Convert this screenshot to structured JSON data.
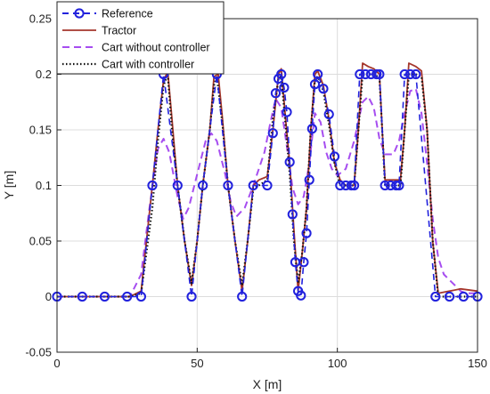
{
  "chart_data": {
    "type": "line",
    "xlabel": "X [m]",
    "ylabel": "Y [m]",
    "xlim": [
      0,
      150
    ],
    "ylim": [
      -0.05,
      0.25
    ],
    "xticks": [
      "0",
      "50",
      "100",
      "150"
    ],
    "yticks": [
      "-0.05",
      "0",
      "0.05",
      "0.1",
      "0.15",
      "0.2",
      "0.25"
    ],
    "grid": true,
    "legend_position": "top-left",
    "series": [
      {
        "name": "Reference",
        "style": "dashed-with-circles",
        "color": "#2222dd",
        "points": [
          [
            0,
            0
          ],
          [
            9,
            0
          ],
          [
            17,
            0
          ],
          [
            25,
            0
          ],
          [
            30,
            0
          ],
          [
            34,
            0.1
          ],
          [
            38,
            0.2
          ],
          [
            43,
            0.1
          ],
          [
            48,
            0
          ],
          [
            52,
            0.1
          ],
          [
            57,
            0.2
          ],
          [
            61,
            0.1
          ],
          [
            66,
            0
          ],
          [
            70,
            0.1
          ],
          [
            75,
            0.1
          ],
          [
            77,
            0.147
          ],
          [
            78,
            0.183
          ],
          [
            79,
            0.196
          ],
          [
            80,
            0.2
          ],
          [
            81,
            0.188
          ],
          [
            82,
            0.166
          ],
          [
            83,
            0.121
          ],
          [
            84,
            0.074
          ],
          [
            85,
            0.031
          ],
          [
            86,
            0.005
          ],
          [
            87,
            0.001
          ],
          [
            88,
            0.031
          ],
          [
            89,
            0.057
          ],
          [
            90,
            0.105
          ],
          [
            91,
            0.151
          ],
          [
            92,
            0.191
          ],
          [
            93,
            0.2
          ],
          [
            95,
            0.187
          ],
          [
            97,
            0.164
          ],
          [
            99,
            0.126
          ],
          [
            101,
            0.1
          ],
          [
            103,
            0.1
          ],
          [
            105,
            0.1
          ],
          [
            106,
            0.1
          ],
          [
            108,
            0.2
          ],
          [
            110,
            0.2
          ],
          [
            112,
            0.2
          ],
          [
            114,
            0.2
          ],
          [
            115,
            0.2
          ],
          [
            117,
            0.1
          ],
          [
            119,
            0.1
          ],
          [
            121,
            0.1
          ],
          [
            122,
            0.1
          ],
          [
            124,
            0.2
          ],
          [
            126,
            0.2
          ],
          [
            128,
            0.2
          ],
          [
            135,
            0
          ],
          [
            140,
            0
          ],
          [
            145,
            0
          ],
          [
            150,
            0
          ]
        ]
      },
      {
        "name": "Tractor",
        "style": "solid",
        "color": "#a5362b",
        "points": [
          [
            0,
            0
          ],
          [
            26,
            0
          ],
          [
            30,
            0.005
          ],
          [
            34,
            0.1
          ],
          [
            36,
            0.15
          ],
          [
            38,
            0.195
          ],
          [
            39.5,
            0.202
          ],
          [
            41,
            0.16
          ],
          [
            43,
            0.1
          ],
          [
            45.5,
            0.05
          ],
          [
            48,
            0.01
          ],
          [
            50,
            0.05
          ],
          [
            52,
            0.1
          ],
          [
            54.5,
            0.15
          ],
          [
            56,
            0.198
          ],
          [
            57.5,
            0.2
          ],
          [
            59,
            0.16
          ],
          [
            61,
            0.1
          ],
          [
            63.5,
            0.05
          ],
          [
            66,
            0.005
          ],
          [
            68,
            0.05
          ],
          [
            70,
            0.1
          ],
          [
            72,
            0.105
          ],
          [
            75,
            0.108
          ],
          [
            77,
            0.15
          ],
          [
            79,
            0.2
          ],
          [
            80,
            0.205
          ],
          [
            81.5,
            0.16
          ],
          [
            83,
            0.12
          ],
          [
            84.5,
            0.06
          ],
          [
            86,
            0.005
          ],
          [
            87.5,
            0.04
          ],
          [
            89,
            0.08
          ],
          [
            90.5,
            0.15
          ],
          [
            92,
            0.2
          ],
          [
            93,
            0.203
          ],
          [
            95,
            0.19
          ],
          [
            97,
            0.16
          ],
          [
            99,
            0.12
          ],
          [
            101,
            0.105
          ],
          [
            103,
            0.1
          ],
          [
            106,
            0.1
          ],
          [
            107.5,
            0.15
          ],
          [
            109,
            0.21
          ],
          [
            111,
            0.207
          ],
          [
            113,
            0.205
          ],
          [
            115,
            0.2
          ],
          [
            116,
            0.15
          ],
          [
            117,
            0.105
          ],
          [
            120,
            0.105
          ],
          [
            122.5,
            0.105
          ],
          [
            124,
            0.15
          ],
          [
            125.5,
            0.21
          ],
          [
            128,
            0.207
          ],
          [
            130,
            0.203
          ],
          [
            132,
            0.15
          ],
          [
            134,
            0.05
          ],
          [
            136,
            0.003
          ],
          [
            140,
            0.005
          ],
          [
            144,
            0.007
          ],
          [
            150,
            0.005
          ]
        ]
      },
      {
        "name": "Cart without controller",
        "style": "dashed",
        "color": "#a64df0",
        "points": [
          [
            0,
            0
          ],
          [
            26,
            0
          ],
          [
            30,
            0.02
          ],
          [
            33,
            0.08
          ],
          [
            36,
            0.133
          ],
          [
            38,
            0.142
          ],
          [
            40,
            0.13
          ],
          [
            43,
            0.09
          ],
          [
            45,
            0.07
          ],
          [
            47,
            0.08
          ],
          [
            50,
            0.11
          ],
          [
            53,
            0.14
          ],
          [
            55,
            0.147
          ],
          [
            57,
            0.14
          ],
          [
            60,
            0.11
          ],
          [
            62,
            0.085
          ],
          [
            64,
            0.072
          ],
          [
            67,
            0.08
          ],
          [
            70,
            0.1
          ],
          [
            74,
            0.13
          ],
          [
            76,
            0.155
          ],
          [
            78,
            0.178
          ],
          [
            80,
            0.17
          ],
          [
            82,
            0.135
          ],
          [
            84,
            0.098
          ],
          [
            86,
            0.083
          ],
          [
            88,
            0.09
          ],
          [
            90,
            0.12
          ],
          [
            92,
            0.165
          ],
          [
            94,
            0.157
          ],
          [
            96,
            0.13
          ],
          [
            98,
            0.115
          ],
          [
            100,
            0.109
          ],
          [
            103,
            0.115
          ],
          [
            106,
            0.14
          ],
          [
            109,
            0.175
          ],
          [
            111,
            0.18
          ],
          [
            113,
            0.17
          ],
          [
            115,
            0.142
          ],
          [
            117,
            0.128
          ],
          [
            120,
            0.128
          ],
          [
            122,
            0.14
          ],
          [
            124,
            0.165
          ],
          [
            126,
            0.185
          ],
          [
            128,
            0.187
          ],
          [
            130,
            0.165
          ],
          [
            132,
            0.12
          ],
          [
            134,
            0.07
          ],
          [
            136,
            0.035
          ],
          [
            138,
            0.02
          ],
          [
            140,
            0.015
          ],
          [
            142,
            0.01
          ],
          [
            144,
            0.005
          ],
          [
            146,
            0.003
          ],
          [
            150,
            0.003
          ]
        ]
      },
      {
        "name": "Cart with controller",
        "style": "dotted",
        "color": "#111111",
        "points": [
          [
            0,
            0
          ],
          [
            26,
            0
          ],
          [
            30,
            0.003
          ],
          [
            34,
            0.08
          ],
          [
            36,
            0.14
          ],
          [
            38,
            0.19
          ],
          [
            39.5,
            0.2
          ],
          [
            41,
            0.15
          ],
          [
            43,
            0.1
          ],
          [
            45.5,
            0.05
          ],
          [
            48,
            0.012
          ],
          [
            50,
            0.05
          ],
          [
            52,
            0.1
          ],
          [
            54.5,
            0.15
          ],
          [
            56,
            0.19
          ],
          [
            57,
            0.198
          ],
          [
            59,
            0.155
          ],
          [
            61,
            0.1
          ],
          [
            63.5,
            0.05
          ],
          [
            66,
            0.01
          ],
          [
            68,
            0.05
          ],
          [
            70,
            0.097
          ],
          [
            72,
            0.1
          ],
          [
            75,
            0.105
          ],
          [
            77,
            0.16
          ],
          [
            79,
            0.196
          ],
          [
            80,
            0.198
          ],
          [
            81.5,
            0.155
          ],
          [
            83,
            0.11
          ],
          [
            84.5,
            0.05
          ],
          [
            86,
            0.012
          ],
          [
            87.5,
            0.04
          ],
          [
            89,
            0.08
          ],
          [
            90.5,
            0.15
          ],
          [
            92,
            0.195
          ],
          [
            93,
            0.198
          ],
          [
            95,
            0.185
          ],
          [
            97,
            0.155
          ],
          [
            99,
            0.12
          ],
          [
            101,
            0.1
          ],
          [
            103,
            0.1
          ],
          [
            106,
            0.1
          ],
          [
            107.5,
            0.15
          ],
          [
            109,
            0.2
          ],
          [
            111,
            0.2
          ],
          [
            113,
            0.2
          ],
          [
            115,
            0.197
          ],
          [
            116,
            0.15
          ],
          [
            117,
            0.1
          ],
          [
            120,
            0.1
          ],
          [
            122.5,
            0.1
          ],
          [
            124,
            0.15
          ],
          [
            125.5,
            0.2
          ],
          [
            128,
            0.2
          ],
          [
            130,
            0.198
          ],
          [
            132,
            0.15
          ],
          [
            134,
            0.05
          ],
          [
            136,
            0
          ],
          [
            140,
            0
          ],
          [
            144,
            0
          ],
          [
            150,
            0
          ]
        ]
      }
    ]
  }
}
